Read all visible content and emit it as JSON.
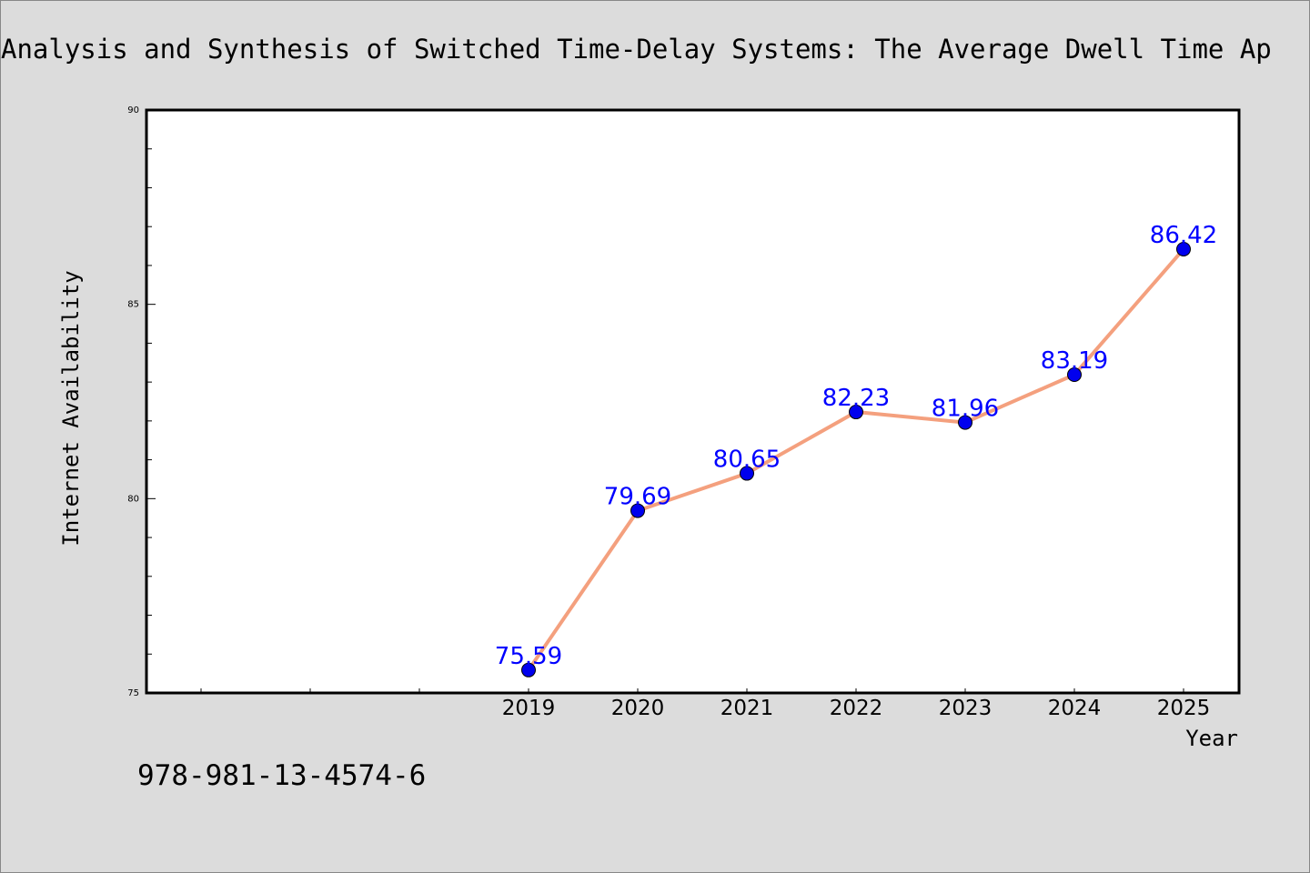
{
  "page": {
    "title": "Analysis and Synthesis of Switched Time-Delay Systems: The Average Dwell Time Ap",
    "footer_text": "978-981-13-4574-6"
  },
  "colors": {
    "background": "#dcdcdc",
    "plot_background": "#ffffff",
    "line": "#f4a07e",
    "marker": "#0000ee",
    "data_label": "#0000ff"
  },
  "chart_data": {
    "type": "line",
    "title": "Analysis and Synthesis of Switched Time-Delay Systems: The Average Dwell Time Ap",
    "xlabel": "Year",
    "ylabel": "Internet Availability",
    "categories": [
      "2019",
      "2020",
      "2021",
      "2022",
      "2023",
      "2024",
      "2025"
    ],
    "x_slots_before": 3,
    "series": [
      {
        "values": [
          75.59,
          79.69,
          80.65,
          82.23,
          81.96,
          83.19,
          86.42
        ],
        "labels": [
          "75.59",
          "79.69",
          "80.65",
          "82.23",
          "81.96",
          "83.19",
          "86.42"
        ]
      }
    ],
    "ylim": [
      75,
      90
    ],
    "y_ticks": [
      75,
      80,
      85,
      90
    ],
    "y_minor_step": 1,
    "grid": false,
    "legend": "none"
  }
}
